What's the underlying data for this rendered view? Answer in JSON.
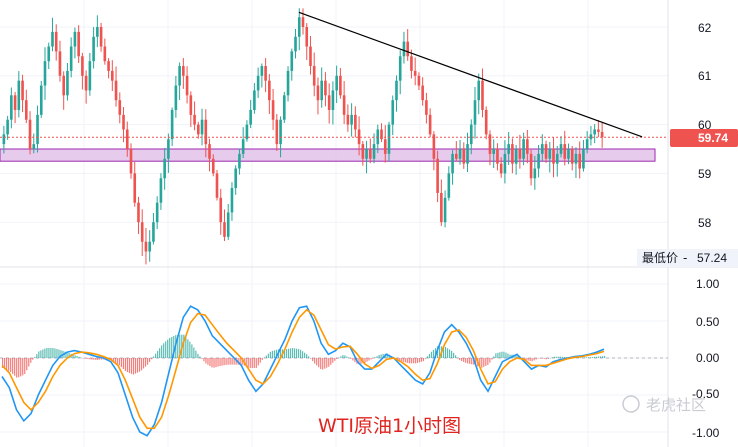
{
  "colors": {
    "up": "#26a69a",
    "down": "#ef5350",
    "macd_line": "#2196f3",
    "signal_line": "#ff9800",
    "hist_up": "#26a69a",
    "hist_down": "#ef5350",
    "zone_fill": "#e1bee7",
    "zone_border": "#9c27b0",
    "trendline": "#000000",
    "price_tag": "#ef5350",
    "caption": "#e0241f"
  },
  "price_axis": {
    "ticks": [
      "62",
      "61",
      "60",
      "59",
      "58"
    ],
    "last_price": "59.74",
    "lowest_label": "最低价",
    "lowest_value": "57.24"
  },
  "osc_axis": {
    "ticks": [
      "1.00",
      "0.50",
      "0.00",
      "-0.50",
      "-1.00"
    ]
  },
  "caption": "WTI原油1小时图",
  "watermark": "老虎社区",
  "chart_data": [
    {
      "type": "candlestick",
      "title": "",
      "ylim": [
        57.0,
        62.5
      ],
      "yticks": [
        58,
        59,
        60,
        61,
        62
      ],
      "grid": true,
      "last_price": 59.74,
      "lowest_price": 57.24,
      "support_zone": [
        59.25,
        59.5
      ],
      "trendline": [
        [
          0.405,
          62.3
        ],
        [
          0.87,
          59.75
        ]
      ],
      "closes": [
        59.8,
        60.1,
        60.6,
        60.3,
        60.9,
        60.5,
        60.1,
        59.5,
        59.6,
        60.2,
        60.8,
        61.3,
        61.6,
        61.9,
        61.5,
        61.0,
        60.6,
        61.1,
        61.6,
        61.9,
        61.4,
        61.0,
        60.7,
        61.3,
        61.8,
        62.0,
        61.6,
        61.3,
        61.1,
        60.9,
        60.5,
        60.2,
        59.9,
        59.5,
        59.0,
        58.4,
        58.0,
        57.6,
        57.4,
        57.6,
        58.0,
        58.4,
        58.9,
        59.3,
        59.7,
        60.3,
        60.8,
        61.2,
        61.0,
        60.6,
        60.2,
        60.0,
        59.8,
        60.1,
        59.6,
        59.3,
        59.0,
        58.5,
        58.0,
        57.7,
        58.2,
        58.7,
        59.1,
        59.4,
        59.7,
        60.0,
        60.3,
        60.7,
        61.0,
        61.2,
        60.9,
        60.5,
        60.1,
        59.6,
        60.1,
        60.6,
        61.1,
        61.5,
        61.8,
        62.2,
        62.0,
        61.6,
        61.2,
        60.8,
        60.5,
        60.9,
        60.6,
        60.3,
        60.7,
        61.0,
        60.6,
        60.2,
        60.0,
        60.2,
        59.9,
        59.6,
        59.3,
        59.5,
        59.3,
        59.6,
        59.9,
        59.7,
        59.4,
        60.0,
        60.5,
        60.9,
        61.4,
        61.7,
        61.4,
        61.1,
        61.0,
        60.8,
        60.5,
        60.2,
        59.8,
        59.3,
        58.6,
        58.0,
        58.5,
        59.0,
        59.4,
        59.3,
        59.5,
        59.2,
        59.6,
        60.0,
        60.5,
        60.9,
        60.3,
        59.8,
        59.4,
        59.5,
        59.2,
        59.0,
        59.4,
        59.6,
        59.2,
        59.5,
        59.3,
        59.7,
        59.4,
        58.9,
        59.1,
        59.4,
        59.6,
        59.3,
        59.5,
        59.2,
        59.4,
        59.6,
        59.3,
        59.5,
        59.2,
        59.4,
        59.1,
        59.5,
        59.7,
        59.8,
        59.9,
        59.85,
        59.74
      ]
    },
    {
      "type": "line",
      "title": "",
      "ylim": [
        -1.15,
        1.15
      ],
      "yticks": [
        1.0,
        0.5,
        0.0,
        -0.5,
        -1.0
      ],
      "grid": true,
      "series": [
        {
          "values": [
            -0.25,
            -0.4,
            -0.7,
            -0.85,
            -0.75,
            -0.5,
            -0.3,
            -0.1,
            0.02,
            0.08,
            0.1,
            0.08,
            0.05,
            0.02,
            0.0,
            -0.05,
            -0.2,
            -0.5,
            -0.8,
            -1.0,
            -1.05,
            -0.9,
            -0.6,
            -0.2,
            0.2,
            0.55,
            0.7,
            0.65,
            0.5,
            0.3,
            0.2,
            0.1,
            0.0,
            -0.1,
            -0.3,
            -0.45,
            -0.35,
            -0.15,
            0.05,
            0.25,
            0.5,
            0.68,
            0.7,
            0.5,
            0.2,
            0.05,
            0.1,
            0.2,
            0.15,
            -0.05,
            -0.15,
            -0.15,
            -0.05,
            0.05,
            0.0,
            -0.1,
            -0.2,
            -0.3,
            -0.35,
            -0.2,
            0.1,
            0.35,
            0.45,
            0.35,
            0.2,
            0.0,
            -0.3,
            -0.45,
            -0.25,
            -0.05,
            0.0,
            0.05,
            -0.05,
            -0.15,
            -0.1,
            -0.12,
            -0.05,
            -0.02,
            0.0,
            0.02,
            0.03,
            0.05,
            0.08,
            0.12
          ]
        },
        {
          "values": [
            -0.1,
            -0.2,
            -0.4,
            -0.6,
            -0.7,
            -0.6,
            -0.45,
            -0.25,
            -0.1,
            0.0,
            0.06,
            0.08,
            0.07,
            0.05,
            0.02,
            -0.02,
            -0.1,
            -0.3,
            -0.55,
            -0.8,
            -0.95,
            -0.95,
            -0.8,
            -0.5,
            -0.15,
            0.2,
            0.48,
            0.6,
            0.58,
            0.45,
            0.32,
            0.2,
            0.1,
            0.0,
            -0.15,
            -0.3,
            -0.35,
            -0.25,
            -0.08,
            0.12,
            0.35,
            0.55,
            0.65,
            0.58,
            0.38,
            0.18,
            0.12,
            0.15,
            0.16,
            0.05,
            -0.08,
            -0.14,
            -0.1,
            -0.02,
            0.0,
            -0.05,
            -0.12,
            -0.22,
            -0.3,
            -0.28,
            -0.08,
            0.18,
            0.35,
            0.38,
            0.28,
            0.1,
            -0.15,
            -0.35,
            -0.32,
            -0.15,
            -0.05,
            0.0,
            -0.02,
            -0.1,
            -0.1,
            -0.1,
            -0.07,
            -0.04,
            -0.01,
            0.01,
            0.02,
            0.04,
            0.06,
            0.09
          ]
        }
      ]
    }
  ]
}
